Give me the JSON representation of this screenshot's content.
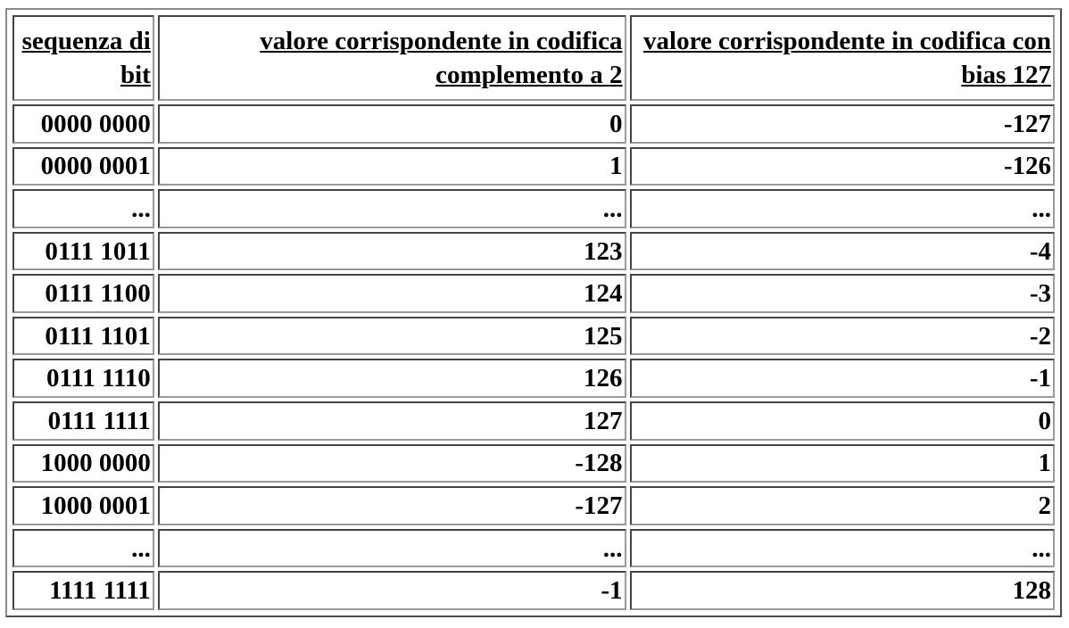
{
  "table": {
    "headers": [
      "sequenza di bit",
      "valore corrispondente  in codifica complemento a 2",
      "valore corrispondente in codifica con bias 127"
    ],
    "rows": [
      [
        "0000 0000",
        "0",
        "-127"
      ],
      [
        "0000 0001",
        "1",
        "-126"
      ],
      [
        "...",
        "...",
        "..."
      ],
      [
        "0111 1011",
        "123",
        "-4"
      ],
      [
        "0111 1100",
        "124",
        "-3"
      ],
      [
        "0111 1101",
        "125",
        "-2"
      ],
      [
        "0111 1110",
        "126",
        "-1"
      ],
      [
        "0111 1111",
        "127",
        "0"
      ],
      [
        "1000 0000",
        "-128",
        "1"
      ],
      [
        "1000 0001",
        "-127",
        "2"
      ],
      [
        "...",
        "...",
        "..."
      ],
      [
        "1111 1111",
        "-1",
        "128"
      ]
    ]
  }
}
